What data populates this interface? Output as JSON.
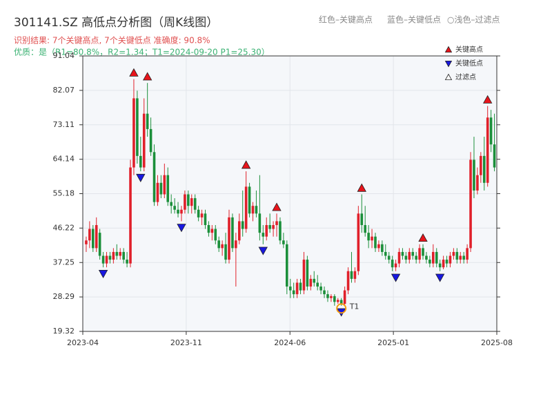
{
  "chart_data": {
    "type": "candlestick",
    "title": "301141.SZ 高低点分析图（周K线图）",
    "subtitle": "识别结果: 7个关键高点, 7个关键低点  准确度: 90.8%",
    "quality": "优质：是（R1=80.8%，R2=1.34；T1=2024-09-20 P1=25.30）",
    "notes": [
      "红色–关键高点",
      "蓝色–关键低点",
      "○浅色–过滤点"
    ],
    "up_color": "#e0202a",
    "down_color": "#1b8f3a",
    "grid": true,
    "xlim": [
      0,
      121.7
    ],
    "xticks": [
      {
        "value": 0,
        "label": "2023-04"
      },
      {
        "value": 30.4,
        "label": "2023-11"
      },
      {
        "value": 60.9,
        "label": "2024-06"
      },
      {
        "value": 91.3,
        "label": "2025-01"
      },
      {
        "value": 121.7,
        "label": "2025-08"
      }
    ],
    "ylim": [
      19.32,
      91.04
    ],
    "yticks": [
      19.32,
      28.29,
      37.25,
      46.22,
      55.18,
      64.14,
      73.11,
      82.07,
      91.04
    ],
    "x": [
      1,
      2,
      3,
      4,
      5,
      6,
      7,
      8,
      9,
      10,
      11,
      12,
      13,
      14,
      15,
      16,
      17,
      18,
      19,
      20,
      21,
      22,
      23,
      24,
      25,
      26,
      27,
      28,
      29,
      30,
      31,
      32,
      33,
      34,
      35,
      36,
      37,
      38,
      39,
      40,
      41,
      42,
      43,
      44,
      45,
      46,
      47,
      48,
      49,
      50,
      51,
      52,
      53,
      54,
      55,
      56,
      57,
      58,
      59,
      60,
      61,
      62,
      63,
      64,
      65,
      66,
      67,
      68,
      69,
      70,
      71,
      72,
      73,
      74,
      75,
      76,
      77,
      78,
      79,
      80,
      81,
      82,
      83,
      84,
      85,
      86,
      87,
      88,
      89,
      90,
      91,
      92,
      93,
      94,
      95,
      96,
      97,
      98,
      99,
      100,
      101,
      102,
      103,
      104,
      105,
      106,
      107,
      108,
      109,
      110,
      111,
      112,
      113,
      114,
      115,
      116,
      117,
      118,
      119,
      120,
      121
    ],
    "ohlc": [
      [
        42,
        44,
        40,
        43
      ],
      [
        43,
        48,
        41,
        46
      ],
      [
        46,
        47,
        40,
        41
      ],
      [
        41,
        49,
        40,
        47
      ],
      [
        45,
        46,
        38,
        39
      ],
      [
        39,
        40,
        36,
        37
      ],
      [
        37,
        40,
        36,
        39
      ],
      [
        39,
        40,
        37,
        38
      ],
      [
        38,
        41,
        37,
        40
      ],
      [
        40,
        42,
        38,
        39
      ],
      [
        39,
        41,
        38,
        40
      ],
      [
        40,
        41,
        37,
        38
      ],
      [
        38,
        40,
        36,
        37
      ],
      [
        37,
        64,
        36,
        62
      ],
      [
        62,
        85,
        60,
        80
      ],
      [
        80,
        82,
        63,
        65
      ],
      [
        65,
        70,
        61,
        62
      ],
      [
        62,
        80,
        61,
        76
      ],
      [
        76,
        84,
        70,
        72
      ],
      [
        72,
        75,
        65,
        66
      ],
      [
        66,
        68,
        52,
        53
      ],
      [
        53,
        60,
        52,
        58
      ],
      [
        58,
        60,
        54,
        55
      ],
      [
        55,
        63,
        54,
        60
      ],
      [
        60,
        62,
        52,
        53
      ],
      [
        53,
        55,
        50,
        52
      ],
      [
        52,
        54,
        50,
        51
      ],
      [
        51,
        53,
        49,
        50
      ],
      [
        50,
        52,
        48,
        51
      ],
      [
        51,
        56,
        50,
        55
      ],
      [
        55,
        56,
        50,
        52
      ],
      [
        52,
        55,
        50,
        54
      ],
      [
        54,
        55,
        50,
        51
      ],
      [
        51,
        52,
        48,
        49
      ],
      [
        49,
        51,
        47,
        50
      ],
      [
        50,
        51,
        46,
        47
      ],
      [
        47,
        48,
        44,
        45
      ],
      [
        45,
        47,
        43,
        46
      ],
      [
        46,
        47,
        42,
        43
      ],
      [
        43,
        44,
        40,
        41
      ],
      [
        41,
        43,
        39,
        42
      ],
      [
        42,
        45,
        37,
        38
      ],
      [
        38,
        51,
        37,
        49
      ],
      [
        49,
        50,
        40,
        41
      ],
      [
        41,
        45,
        31,
        43
      ],
      [
        43,
        50,
        42,
        48
      ],
      [
        48,
        56,
        44,
        46
      ],
      [
        46,
        61,
        45,
        57
      ],
      [
        57,
        58,
        49,
        50
      ],
      [
        50,
        53,
        48,
        52
      ],
      [
        52,
        56,
        49,
        50
      ],
      [
        50,
        60,
        43,
        45
      ],
      [
        45,
        47,
        42,
        44
      ],
      [
        44,
        49,
        43,
        47
      ],
      [
        47,
        50,
        45,
        46
      ],
      [
        46,
        48,
        44,
        47
      ],
      [
        47,
        50,
        44,
        48
      ],
      [
        48,
        49,
        42,
        43
      ],
      [
        43,
        45,
        41,
        42
      ],
      [
        42,
        43,
        29,
        31
      ],
      [
        31,
        33,
        28,
        30
      ],
      [
        30,
        32,
        28,
        29
      ],
      [
        29,
        33,
        28,
        32
      ],
      [
        32,
        33,
        29,
        30
      ],
      [
        30,
        40,
        29,
        38
      ],
      [
        38,
        39,
        30,
        31
      ],
      [
        31,
        34,
        30,
        33
      ],
      [
        33,
        35,
        31,
        32
      ],
      [
        32,
        34,
        30,
        31
      ],
      [
        31,
        32,
        29,
        30
      ],
      [
        30,
        31,
        28,
        29
      ],
      [
        29,
        30,
        27,
        28
      ],
      [
        28,
        29,
        27,
        28.5
      ],
      [
        28.5,
        29,
        26,
        27
      ],
      [
        27,
        28,
        26.5,
        27.5
      ],
      [
        27.5,
        28,
        26,
        26.5
      ],
      [
        26.5,
        31,
        26,
        30
      ],
      [
        30,
        36,
        29,
        35
      ],
      [
        35,
        40,
        32,
        33
      ],
      [
        33,
        36,
        32,
        35
      ],
      [
        35,
        52,
        34,
        50
      ],
      [
        50,
        55,
        45,
        47
      ],
      [
        47,
        52,
        44,
        45
      ],
      [
        45,
        47,
        41,
        43
      ],
      [
        43,
        46,
        41,
        44
      ],
      [
        44,
        45,
        40,
        41
      ],
      [
        41,
        43,
        40,
        42
      ],
      [
        42,
        43,
        39,
        40
      ],
      [
        40,
        42,
        38,
        39
      ],
      [
        39,
        40,
        37,
        38
      ],
      [
        38,
        39,
        35,
        36
      ],
      [
        36,
        38,
        35,
        37
      ],
      [
        37,
        41,
        36,
        40
      ],
      [
        40,
        41,
        38,
        39
      ],
      [
        39,
        40,
        37,
        38
      ],
      [
        38,
        41,
        37,
        40
      ],
      [
        40,
        41,
        38,
        39
      ],
      [
        39,
        40,
        37,
        38
      ],
      [
        38,
        42,
        37,
        41
      ],
      [
        41,
        42,
        38,
        39
      ],
      [
        39,
        40,
        37,
        38
      ],
      [
        38,
        39,
        36,
        37
      ],
      [
        37,
        42,
        36,
        40
      ],
      [
        40,
        41,
        36,
        37
      ],
      [
        37,
        38,
        35,
        36
      ],
      [
        36,
        39,
        35.5,
        38
      ],
      [
        38,
        39,
        36,
        37
      ],
      [
        37,
        40,
        36,
        39
      ],
      [
        39,
        41,
        38,
        40
      ],
      [
        40,
        41,
        37,
        38
      ],
      [
        38,
        40,
        37,
        39
      ],
      [
        39,
        40,
        37,
        38
      ],
      [
        38,
        42,
        37,
        41
      ],
      [
        41,
        66,
        40,
        64
      ],
      [
        64,
        70,
        54,
        56
      ],
      [
        56,
        62,
        55,
        60
      ],
      [
        60,
        66,
        58,
        65
      ],
      [
        65,
        70,
        56,
        58
      ],
      [
        58,
        78,
        57,
        75
      ],
      [
        75,
        77,
        66,
        68
      ],
      [
        68,
        76,
        61,
        62
      ]
    ],
    "markers": [
      {
        "name": "关键高点",
        "color": "#e8141b",
        "shape": "up",
        "x": [
          15,
          19,
          48,
          57,
          82,
          100,
          119
        ],
        "values": [
          85,
          84,
          61,
          50,
          55,
          42,
          78
        ]
      },
      {
        "name": "关键低点",
        "color": "#1818e0",
        "shape": "down",
        "x": [
          6,
          17,
          29,
          53,
          76,
          92,
          105
        ],
        "values": [
          36,
          61,
          48,
          42,
          26,
          35,
          35
        ]
      },
      {
        "name": "过滤点",
        "color": "#ffffff",
        "shape": "up",
        "x": [],
        "values": []
      }
    ],
    "annotation": {
      "label": "T1",
      "x": 76,
      "y": 25.3,
      "color": "#f39c12"
    }
  }
}
